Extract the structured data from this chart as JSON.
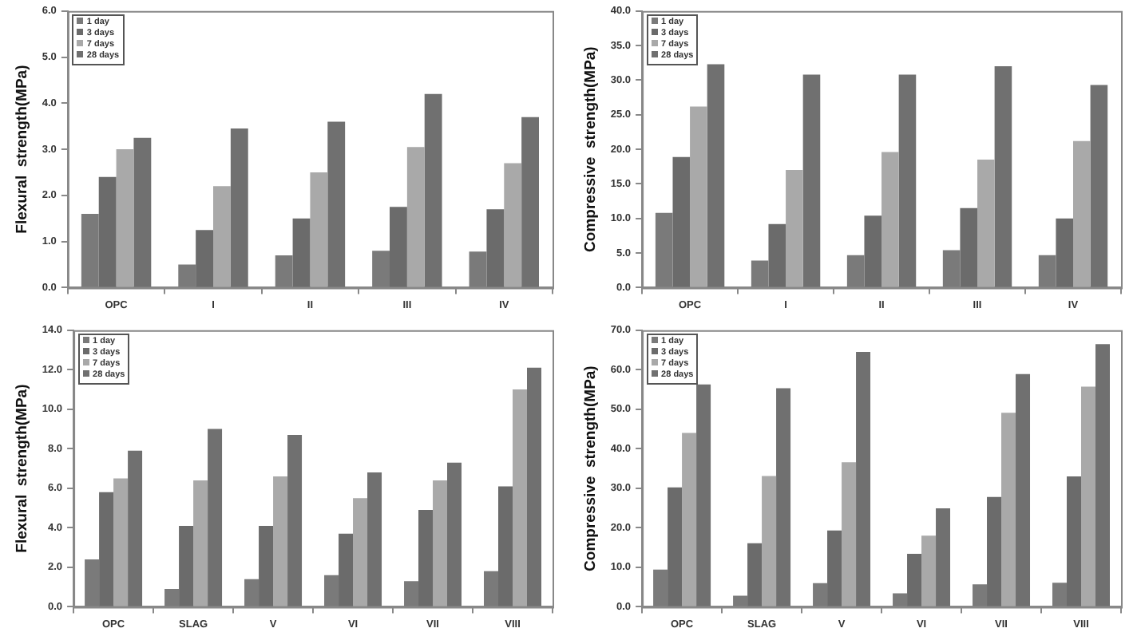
{
  "chart_data": [
    {
      "type": "bar",
      "ylabel": "Flexural  strength(MPa)",
      "categories": [
        "OPC",
        "I",
        "II",
        "III",
        "IV"
      ],
      "series": [
        {
          "name": "1 day",
          "color": "#7a7a7a",
          "values": [
            1.6,
            0.5,
            0.7,
            0.8,
            0.78
          ]
        },
        {
          "name": "3 days",
          "color": "#6b6b6b",
          "values": [
            2.4,
            1.25,
            1.5,
            1.75,
            1.7
          ]
        },
        {
          "name": "7 days",
          "color": "#a9a9a9",
          "values": [
            3.0,
            2.2,
            2.5,
            3.05,
            2.7
          ]
        },
        {
          "name": "28 days",
          "color": "#707070",
          "values": [
            3.25,
            3.45,
            3.6,
            4.2,
            3.7
          ]
        }
      ],
      "ylim": [
        0,
        6
      ],
      "yticks": [
        {
          "value": 0,
          "label": "0.0"
        },
        {
          "value": 1,
          "label": "1.0"
        },
        {
          "value": 2,
          "label": "2.0"
        },
        {
          "value": 3,
          "label": "3.0"
        },
        {
          "value": 4,
          "label": "4.0"
        },
        {
          "value": 5,
          "label": "5.0"
        },
        {
          "value": 6,
          "label": "6.0"
        }
      ],
      "grid": false,
      "legend": "top left"
    },
    {
      "type": "bar",
      "ylabel": "Compressive  strength(MPa)",
      "categories": [
        "OPC",
        "I",
        "II",
        "III",
        "IV"
      ],
      "series": [
        {
          "name": "1 day",
          "color": "#7a7a7a",
          "values": [
            10.8,
            3.9,
            4.7,
            5.4,
            4.7
          ]
        },
        {
          "name": "3 days",
          "color": "#6b6b6b",
          "values": [
            18.9,
            9.2,
            10.4,
            11.5,
            10.0
          ]
        },
        {
          "name": "7 days",
          "color": "#a9a9a9",
          "values": [
            26.2,
            17.0,
            19.6,
            18.5,
            21.2
          ]
        },
        {
          "name": "28 days",
          "color": "#707070",
          "values": [
            32.3,
            30.8,
            30.8,
            32.0,
            29.3
          ]
        }
      ],
      "ylim": [
        0,
        40
      ],
      "yticks": [
        {
          "value": 0,
          "label": "0.0"
        },
        {
          "value": 5,
          "label": "5.0"
        },
        {
          "value": 10,
          "label": "10.0"
        },
        {
          "value": 15,
          "label": "15.0"
        },
        {
          "value": 20,
          "label": "20.0"
        },
        {
          "value": 25,
          "label": "25.0"
        },
        {
          "value": 30,
          "label": "30.0"
        },
        {
          "value": 35,
          "label": "35.0"
        },
        {
          "value": 40,
          "label": "40.0"
        }
      ],
      "grid": false,
      "legend": "top left"
    },
    {
      "type": "bar",
      "ylabel": "Flexural  strength(MPa)",
      "categories": [
        "OPC",
        "SLAG",
        "V",
        "VI",
        "VII",
        "VIII"
      ],
      "series": [
        {
          "name": "1 day",
          "color": "#7a7a7a",
          "values": [
            2.4,
            0.9,
            1.4,
            1.6,
            1.3,
            1.8
          ]
        },
        {
          "name": "3 days",
          "color": "#6b6b6b",
          "values": [
            5.8,
            4.1,
            4.1,
            3.7,
            4.9,
            6.1
          ]
        },
        {
          "name": "7 days",
          "color": "#a9a9a9",
          "values": [
            6.5,
            6.4,
            6.6,
            5.5,
            6.4,
            11.0
          ]
        },
        {
          "name": "28 days",
          "color": "#707070",
          "values": [
            7.9,
            9.0,
            8.7,
            6.8,
            7.3,
            12.1
          ]
        }
      ],
      "ylim": [
        0,
        14
      ],
      "yticks": [
        {
          "value": 0,
          "label": "0.0"
        },
        {
          "value": 2,
          "label": "2.0"
        },
        {
          "value": 4,
          "label": "4.0"
        },
        {
          "value": 6,
          "label": "6.0"
        },
        {
          "value": 8,
          "label": "8.0"
        },
        {
          "value": 10,
          "label": "10.0"
        },
        {
          "value": 12,
          "label": "12.0"
        },
        {
          "value": 14,
          "label": "14.0"
        }
      ],
      "grid": false,
      "legend": "top left"
    },
    {
      "type": "bar",
      "ylabel": "Compressive  strength(MPa)",
      "categories": [
        "OPC",
        "SLAG",
        "V",
        "VI",
        "VII",
        "VIII"
      ],
      "series": [
        {
          "name": "1 day",
          "color": "#7a7a7a",
          "values": [
            9.4,
            2.8,
            6.0,
            3.4,
            5.7,
            6.1
          ]
        },
        {
          "name": "3 days",
          "color": "#6b6b6b",
          "values": [
            30.2,
            16.1,
            19.3,
            13.4,
            27.8,
            33.0
          ]
        },
        {
          "name": "7 days",
          "color": "#a9a9a9",
          "values": [
            44.0,
            33.1,
            36.6,
            18.0,
            49.1,
            55.7
          ]
        },
        {
          "name": "28 days",
          "color": "#707070",
          "values": [
            56.3,
            55.3,
            64.5,
            24.9,
            58.9,
            66.5
          ]
        }
      ],
      "ylim": [
        0,
        70
      ],
      "yticks": [
        {
          "value": 0,
          "label": "0.0"
        },
        {
          "value": 10,
          "label": "10.0"
        },
        {
          "value": 20,
          "label": "20.0"
        },
        {
          "value": 30,
          "label": "30.0"
        },
        {
          "value": 40,
          "label": "40.0"
        },
        {
          "value": 50,
          "label": "50.0"
        },
        {
          "value": 60,
          "label": "60.0"
        },
        {
          "value": 70,
          "label": "70.0"
        }
      ],
      "grid": false,
      "legend": "top left"
    }
  ]
}
